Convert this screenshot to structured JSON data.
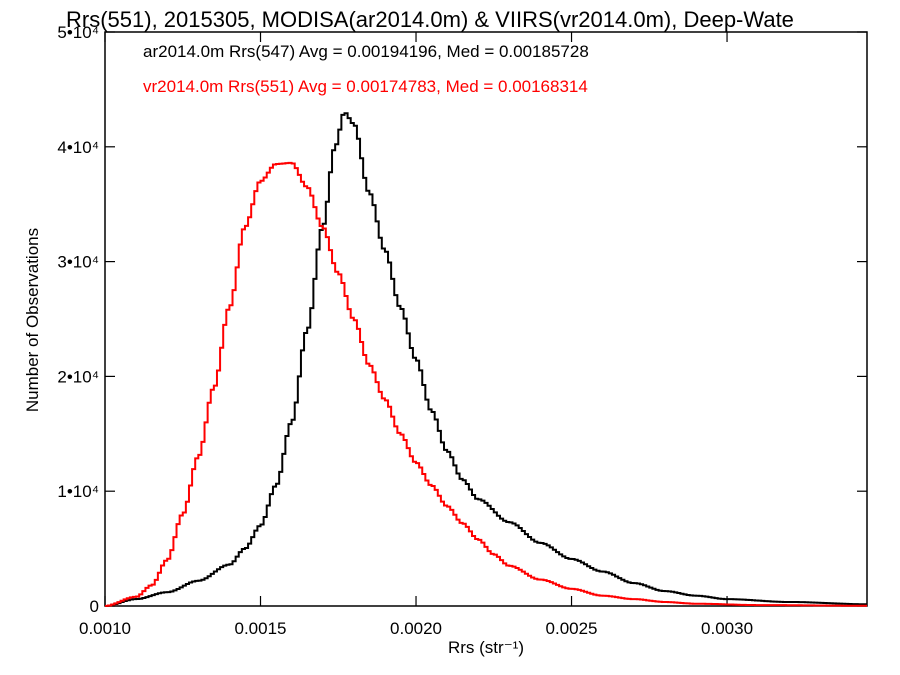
{
  "chart_data": {
    "type": "line",
    "title": "Rrs(551), 2015305, MODISA(ar2014.0m) & VIIRS(vr2014.0m), Deep-Wate",
    "xlabel": "Rrs (str⁻¹)",
    "ylabel": "Number of Observations",
    "xlim": [
      0.001,
      0.00345
    ],
    "ylim": [
      0,
      50000
    ],
    "x_ticks": [
      0.001,
      0.0015,
      0.002,
      0.0025,
      0.003
    ],
    "x_tick_labels": [
      "0.0010",
      "0.0015",
      "0.0020",
      "0.0025",
      "0.0030"
    ],
    "y_ticks": [
      0,
      10000,
      20000,
      30000,
      40000,
      50000
    ],
    "y_tick_labels": [
      "0",
      "1•10⁴",
      "2•10⁴",
      "3•10⁴",
      "4•10⁴",
      "5•10⁴"
    ],
    "grid": false,
    "legend_placement": "top-left inside",
    "series": [
      {
        "name": "ar2014.0m Rrs(547) Avg = 0.00194196, Med = 0.00185728",
        "color": "#000000",
        "style": "step",
        "points": [
          [
            0.001,
            0
          ],
          [
            0.0011,
            600
          ],
          [
            0.0012,
            1200
          ],
          [
            0.0013,
            2200
          ],
          [
            0.0014,
            3600
          ],
          [
            0.00145,
            5000
          ],
          [
            0.0015,
            7000
          ],
          [
            0.00155,
            10500
          ],
          [
            0.0016,
            16000
          ],
          [
            0.00165,
            24000
          ],
          [
            0.0017,
            33000
          ],
          [
            0.00174,
            40000
          ],
          [
            0.00177,
            43000
          ],
          [
            0.0018,
            42000
          ],
          [
            0.00185,
            36000
          ],
          [
            0.0019,
            31000
          ],
          [
            0.00195,
            26000
          ],
          [
            0.002,
            21500
          ],
          [
            0.00205,
            17000
          ],
          [
            0.0021,
            13500
          ],
          [
            0.00215,
            11000
          ],
          [
            0.0022,
            9300
          ],
          [
            0.0023,
            7300
          ],
          [
            0.0024,
            5500
          ],
          [
            0.0025,
            4100
          ],
          [
            0.0026,
            3000
          ],
          [
            0.0027,
            2000
          ],
          [
            0.0028,
            1300
          ],
          [
            0.0029,
            900
          ],
          [
            0.003,
            600
          ],
          [
            0.0032,
            350
          ],
          [
            0.00345,
            150
          ]
        ]
      },
      {
        "name": "vr2014.0m Rrs(551) Avg = 0.00174783, Med = 0.00168314",
        "color": "#ff0000",
        "style": "step",
        "points": [
          [
            0.001,
            0
          ],
          [
            0.0011,
            800
          ],
          [
            0.00115,
            1800
          ],
          [
            0.0012,
            4000
          ],
          [
            0.00125,
            8000
          ],
          [
            0.0013,
            13000
          ],
          [
            0.00135,
            19000
          ],
          [
            0.0014,
            26000
          ],
          [
            0.00145,
            33000
          ],
          [
            0.0015,
            37000
          ],
          [
            0.00155,
            38500
          ],
          [
            0.0016,
            38600
          ],
          [
            0.00165,
            36500
          ],
          [
            0.0017,
            33000
          ],
          [
            0.00175,
            29000
          ],
          [
            0.0018,
            25000
          ],
          [
            0.00185,
            21000
          ],
          [
            0.0019,
            18000
          ],
          [
            0.00195,
            15000
          ],
          [
            0.002,
            12500
          ],
          [
            0.00205,
            10500
          ],
          [
            0.0021,
            8700
          ],
          [
            0.00215,
            7200
          ],
          [
            0.0022,
            5800
          ],
          [
            0.00225,
            4500
          ],
          [
            0.0023,
            3500
          ],
          [
            0.0024,
            2300
          ],
          [
            0.0025,
            1500
          ],
          [
            0.0026,
            900
          ],
          [
            0.0027,
            600
          ],
          [
            0.0028,
            350
          ],
          [
            0.0029,
            200
          ],
          [
            0.0031,
            80
          ],
          [
            0.00345,
            20
          ]
        ]
      }
    ]
  }
}
